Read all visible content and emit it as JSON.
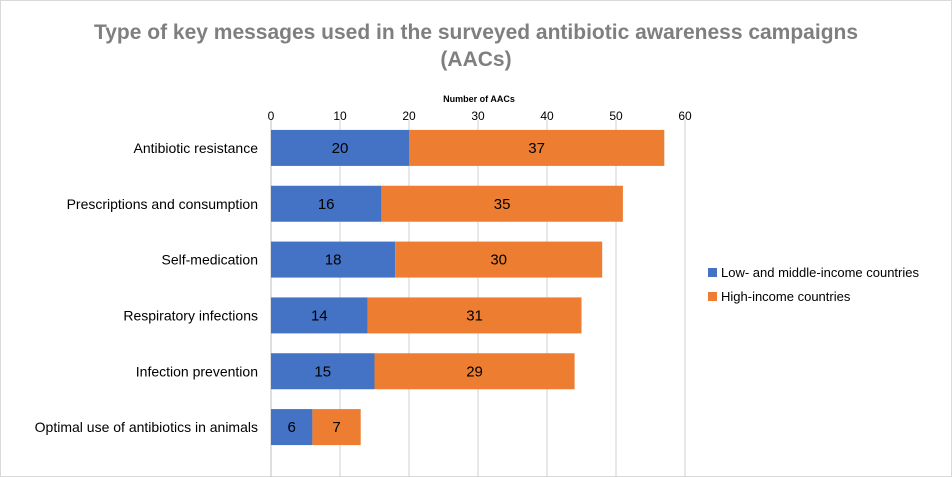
{
  "chart_data": {
    "type": "bar",
    "orientation": "horizontal",
    "stacked": true,
    "title_lines": [
      "Type of key messages used in the surveyed antibiotic awareness campaigns",
      "(AACs)"
    ],
    "xlabel": "Number of AACs",
    "ylabel": "",
    "xlim": [
      0,
      60
    ],
    "xticks": [
      0,
      10,
      20,
      30,
      40,
      50,
      60
    ],
    "xaxis_position": "top",
    "grid": "vertical",
    "legend_position": "right",
    "categories": [
      "Antibiotic resistance",
      "Prescriptions and consumption",
      "Self-medication",
      "Respiratory infections",
      "Infection prevention",
      "Optimal use of antibiotics in animals"
    ],
    "series": [
      {
        "name": "Low- and middle-income countries",
        "color": "#4472c4",
        "values": [
          20,
          16,
          18,
          14,
          15,
          6
        ]
      },
      {
        "name": "High-income countries",
        "color": "#ed7d31",
        "values": [
          37,
          35,
          30,
          31,
          29,
          7
        ]
      }
    ]
  }
}
